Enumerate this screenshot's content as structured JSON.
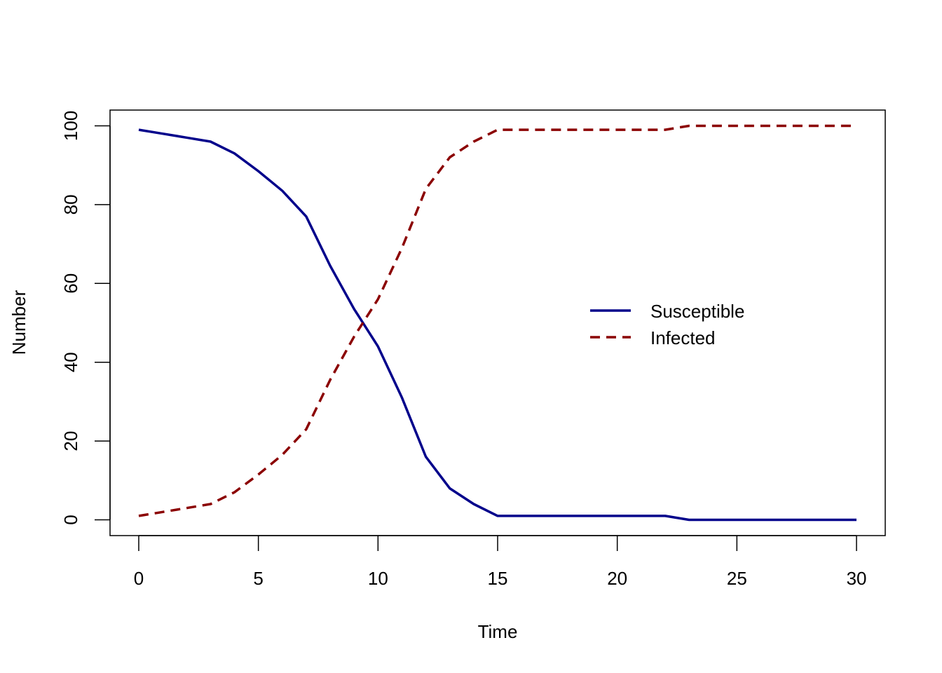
{
  "chart_data": {
    "type": "line",
    "title": "",
    "xlabel": "Time",
    "ylabel": "Number",
    "xlim": [
      -1.2,
      31.2
    ],
    "ylim": [
      -4,
      104
    ],
    "xticks": [
      0,
      5,
      10,
      15,
      20,
      25,
      30
    ],
    "yticks": [
      0,
      20,
      40,
      60,
      80,
      100
    ],
    "grid": false,
    "legend_position": "center-right",
    "x": [
      0,
      1,
      2,
      3,
      4,
      5,
      6,
      7,
      8,
      9,
      10,
      11,
      12,
      13,
      14,
      15,
      16,
      17,
      18,
      19,
      20,
      21,
      22,
      23,
      24,
      25,
      26,
      27,
      28,
      29,
      30
    ],
    "series": [
      {
        "name": "Susceptible",
        "color": "#00008B",
        "dash": "solid",
        "values": [
          99,
          98,
          97,
          96,
          93,
          88.5,
          83.5,
          77,
          64.5,
          53.5,
          44,
          31,
          16,
          8,
          4,
          1,
          1,
          1,
          1,
          1,
          1,
          1,
          1,
          0,
          0,
          0,
          0,
          0,
          0,
          0,
          0
        ]
      },
      {
        "name": "Infected",
        "color": "#8B0000",
        "dash": "dashed",
        "values": [
          1,
          2,
          3,
          4,
          7,
          11.5,
          16.5,
          23,
          35.5,
          46.5,
          56,
          69,
          84,
          92,
          96,
          99,
          99,
          99,
          99,
          99,
          99,
          99,
          99,
          100,
          100,
          100,
          100,
          100,
          100,
          100,
          100
        ]
      }
    ]
  }
}
